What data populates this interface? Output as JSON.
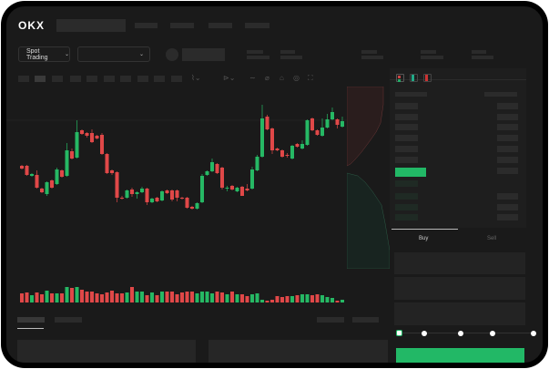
{
  "header": {
    "logo": "OKX"
  },
  "toolbar": {
    "market_selector": "Spot Trading",
    "pair_selector": ""
  },
  "order_form": {
    "tabs": [
      {
        "label": "Buy",
        "active": true
      },
      {
        "label": "Sell",
        "active": false
      }
    ],
    "leverage_slider_value": 0
  },
  "colors": {
    "up": "#26b864",
    "down": "#e04848",
    "background": "#1a1a1a",
    "accent": "#22b866"
  },
  "chart_data": {
    "type": "candlestick",
    "candles": [
      {
        "o": 58,
        "c": 55,
        "h": 59,
        "l": 54
      },
      {
        "o": 58,
        "c": 48,
        "h": 59,
        "l": 47
      },
      {
        "o": 47,
        "c": 49,
        "h": 50,
        "l": 46
      },
      {
        "o": 48,
        "c": 34,
        "h": 53,
        "l": 33
      },
      {
        "o": 33,
        "c": 29,
        "h": 34,
        "l": 28
      },
      {
        "o": 27,
        "c": 40,
        "h": 41,
        "l": 25
      },
      {
        "o": 42,
        "c": 34,
        "h": 43,
        "l": 33
      },
      {
        "o": 38,
        "c": 54,
        "h": 56,
        "l": 37
      },
      {
        "o": 53,
        "c": 46,
        "h": 54,
        "l": 45
      },
      {
        "o": 47,
        "c": 75,
        "h": 83,
        "l": 46
      },
      {
        "o": 74,
        "c": 66,
        "h": 77,
        "l": 65
      },
      {
        "o": 67,
        "c": 95,
        "h": 108,
        "l": 66
      },
      {
        "o": 97,
        "c": 93,
        "h": 98,
        "l": 92
      },
      {
        "o": 94,
        "c": 91,
        "h": 95,
        "l": 89
      },
      {
        "o": 94,
        "c": 84,
        "h": 98,
        "l": 83
      },
      {
        "o": 91,
        "c": 88,
        "h": 92,
        "l": 87
      },
      {
        "o": 92,
        "c": 71,
        "h": 94,
        "l": 70
      },
      {
        "o": 71,
        "c": 50,
        "h": 72,
        "l": 49
      },
      {
        "o": 53,
        "c": 50,
        "h": 54,
        "l": 48
      },
      {
        "o": 51,
        "c": 23,
        "h": 52,
        "l": 18
      },
      {
        "o": 23,
        "c": 22,
        "h": 25,
        "l": 21
      },
      {
        "o": 23,
        "c": 31,
        "h": 32,
        "l": 22
      },
      {
        "o": 32,
        "c": 27,
        "h": 34,
        "l": 24
      },
      {
        "o": 27,
        "c": 29,
        "h": 30,
        "l": 22
      },
      {
        "o": 29,
        "c": 33,
        "h": 35,
        "l": 28
      },
      {
        "o": 33,
        "c": 18,
        "h": 34,
        "l": 15
      },
      {
        "o": 18,
        "c": 22,
        "h": 23,
        "l": 17
      },
      {
        "o": 23,
        "c": 19,
        "h": 24,
        "l": 18
      },
      {
        "o": 20,
        "c": 30,
        "h": 31,
        "l": 19
      },
      {
        "o": 31,
        "c": 28,
        "h": 32,
        "l": 27
      },
      {
        "o": 31,
        "c": 21,
        "h": 32,
        "l": 19
      },
      {
        "o": 31,
        "c": 23,
        "h": 32,
        "l": 19
      },
      {
        "o": 23,
        "c": 22,
        "h": 24,
        "l": 21
      },
      {
        "o": 23,
        "c": 12,
        "h": 24,
        "l": 11
      },
      {
        "o": 13,
        "c": 11,
        "h": 14,
        "l": 10
      },
      {
        "o": 11,
        "c": 17,
        "h": 18,
        "l": 10
      },
      {
        "o": 18,
        "c": 47,
        "h": 49,
        "l": 17
      },
      {
        "o": 48,
        "c": 52,
        "h": 53,
        "l": 47
      },
      {
        "o": 52,
        "c": 62,
        "h": 66,
        "l": 51
      },
      {
        "o": 60,
        "c": 50,
        "h": 61,
        "l": 49
      },
      {
        "o": 56,
        "c": 34,
        "h": 57,
        "l": 32
      },
      {
        "o": 33,
        "c": 34,
        "h": 36,
        "l": 30
      },
      {
        "o": 36,
        "c": 32,
        "h": 37,
        "l": 31
      },
      {
        "o": 30,
        "c": 34,
        "h": 35,
        "l": 29
      },
      {
        "o": 35,
        "c": 25,
        "h": 36,
        "l": 25
      },
      {
        "o": 33,
        "c": 31,
        "h": 38,
        "l": 30
      },
      {
        "o": 33,
        "c": 54,
        "h": 57,
        "l": 32
      },
      {
        "o": 53,
        "c": 68,
        "h": 70,
        "l": 52
      },
      {
        "o": 68,
        "c": 110,
        "h": 125,
        "l": 67
      },
      {
        "o": 112,
        "c": 98,
        "h": 114,
        "l": 97
      },
      {
        "o": 99,
        "c": 75,
        "h": 100,
        "l": 71
      },
      {
        "o": 77,
        "c": 75,
        "h": 78,
        "l": 74
      },
      {
        "o": 75,
        "c": 68,
        "h": 76,
        "l": 67
      },
      {
        "o": 70,
        "c": 69,
        "h": 72,
        "l": 67
      },
      {
        "o": 66,
        "c": 80,
        "h": 81,
        "l": 65
      },
      {
        "o": 82,
        "c": 79,
        "h": 83,
        "l": 78
      },
      {
        "o": 77,
        "c": 82,
        "h": 86,
        "l": 76
      },
      {
        "o": 81,
        "c": 108,
        "h": 109,
        "l": 80
      },
      {
        "o": 110,
        "c": 97,
        "h": 111,
        "l": 96
      },
      {
        "o": 97,
        "c": 92,
        "h": 98,
        "l": 91
      },
      {
        "o": 91,
        "c": 100,
        "h": 110,
        "l": 90
      },
      {
        "o": 100,
        "c": 109,
        "h": 115,
        "l": 99
      },
      {
        "o": 109,
        "c": 117,
        "h": 122,
        "l": 108
      },
      {
        "o": 109,
        "c": 103,
        "h": 110,
        "l": 99
      },
      {
        "o": 101,
        "c": 107,
        "h": 112,
        "l": 100
      }
    ],
    "volume": [
      10,
      11,
      8,
      11,
      9,
      13,
      10,
      10,
      10,
      17,
      16,
      17,
      14,
      12,
      12,
      10,
      9,
      11,
      13,
      10,
      10,
      11,
      17,
      12,
      12,
      8,
      11,
      8,
      12,
      12,
      12,
      9,
      11,
      12,
      12,
      10,
      12,
      12,
      10,
      12,
      11,
      9,
      12,
      9,
      9,
      7,
      9,
      10,
      3,
      2,
      3,
      7,
      6,
      7,
      7,
      8,
      9,
      9,
      8,
      9,
      8,
      6,
      5,
      2,
      3
    ],
    "grid": false
  }
}
